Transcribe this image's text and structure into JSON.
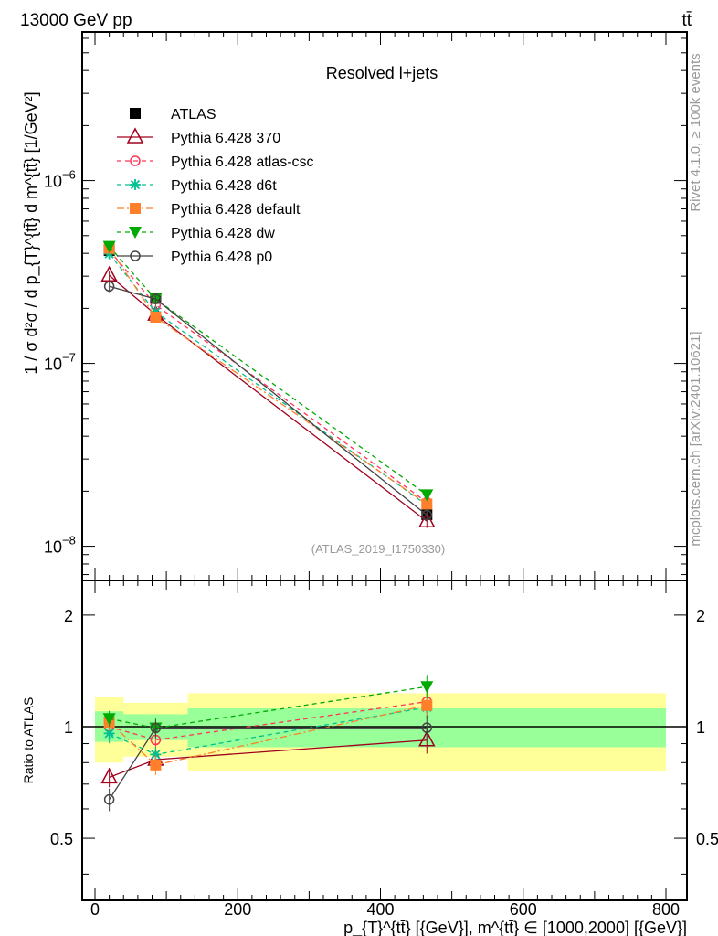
{
  "header": {
    "left": "13000 GeV pp",
    "right": "tt̄"
  },
  "side": {
    "rivet": "Rivet 4.1.0, ≥ 100k events",
    "mcplots": "mcplots.cern.ch [arXiv:2401.10621]"
  },
  "chart_data": [
    {
      "type": "line",
      "title": "Resolved l+jets",
      "analysis": "(ATLAS_2019_I1750330)",
      "ylabel": "1 / σ d²σ / d p_{T}^{tt̄} d m^{tt̄} [1/GeV²]",
      "yscale": "log",
      "ylim": [
        6.5e-09,
        6.5e-06
      ],
      "ytick_labels": [
        {
          "v": 1e-06,
          "m": "10",
          "e": "−6"
        },
        {
          "v": 1e-07,
          "m": "10",
          "e": "−7"
        },
        {
          "v": 1e-08,
          "m": "10",
          "e": "−8"
        }
      ],
      "x": [
        20,
        85,
        465
      ],
      "series": [
        {
          "name": "ATLAS",
          "color": "#000000",
          "marker": "square-filled",
          "style": "none",
          "values": [
            4.15e-07,
            2.27e-07,
            1.49e-08
          ],
          "relerr": [
            0.04,
            0.04,
            0.06
          ]
        },
        {
          "name": "Pythia 6.428 370",
          "color": "#a0001e",
          "marker": "triangle-open",
          "style": "solid",
          "values": [
            3.03e-07,
            1.85e-07,
            1.37e-08
          ],
          "relerr": [
            0.06,
            0.05,
            0.08
          ]
        },
        {
          "name": "Pythia 6.428 atlas-csc",
          "color": "#ff3355",
          "marker": "circle-open",
          "style": "dashed",
          "values": [
            4.15e-07,
            2.09e-07,
            1.74e-08
          ],
          "relerr": [
            0.05,
            0.05,
            0.07
          ]
        },
        {
          "name": "Pythia 6.428 d6t",
          "color": "#00c090",
          "marker": "star",
          "style": "dashed",
          "values": [
            3.98e-07,
            1.91e-07,
            1.68e-08
          ],
          "relerr": [
            0.06,
            0.05,
            0.07
          ]
        },
        {
          "name": "Pythia 6.428 default",
          "color": "#ff7f2a",
          "marker": "square-filled",
          "style": "dashdot",
          "values": [
            4.27e-07,
            1.79e-07,
            1.7e-08
          ],
          "relerr": [
            0.05,
            0.06,
            0.07
          ]
        },
        {
          "name": "Pythia 6.428 dw",
          "color": "#00aa00",
          "marker": "triangle-down-filled",
          "style": "dashed",
          "values": [
            4.36e-07,
            2.25e-07,
            1.91e-08
          ],
          "relerr": [
            0.05,
            0.05,
            0.07
          ]
        },
        {
          "name": "Pythia 6.428 p0",
          "color": "#444444",
          "marker": "circle-open",
          "style": "solid",
          "values": [
            2.64e-07,
            2.25e-07,
            1.48e-08
          ],
          "relerr": [
            0.07,
            0.06,
            0.08
          ]
        }
      ]
    },
    {
      "type": "line",
      "ylabel": "Ratio to ATLAS",
      "yscale": "log",
      "ylim": [
        0.34,
        2.48
      ],
      "ytick_labels": [
        "2",
        "1",
        "0.5"
      ],
      "xlabel": "p_{T}^{tt̄} [{GeV}], m^{tt̄} ∈ [1000,2000] [{GeV}]",
      "xlim": [
        -20,
        820
      ],
      "xtick_labels": [
        "0",
        "200",
        "400",
        "600",
        "800"
      ],
      "bins": [
        [
          0,
          40
        ],
        [
          40,
          130
        ],
        [
          130,
          800
        ]
      ],
      "band_inner": [
        [
          0.91,
          1.1
        ],
        [
          0.92,
          1.08
        ],
        [
          0.88,
          1.12
        ]
      ],
      "band_outer": [
        [
          0.8,
          1.2
        ],
        [
          0.83,
          1.16
        ],
        [
          0.76,
          1.23
        ]
      ],
      "band_colors": {
        "inner": "#99ff99",
        "outer": "#ffff99"
      }
    }
  ]
}
